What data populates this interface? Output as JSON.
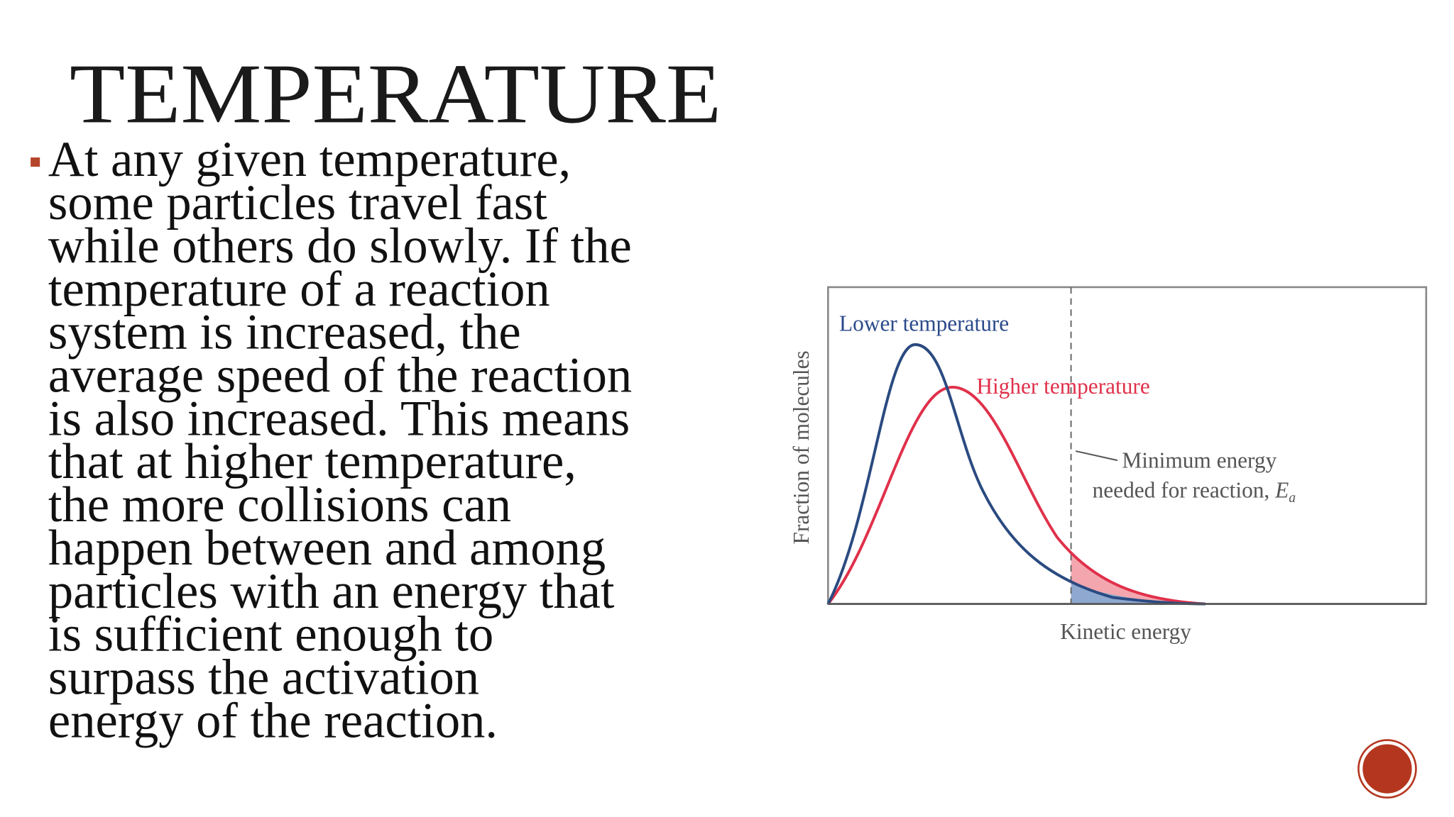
{
  "slide": {
    "title": "TEMPERATURE",
    "bullet_lines": [
      "At any given temperature,",
      "some particles travel fast",
      "while others do slowly. If the",
      "temperature of a reaction",
      "system is increased, the",
      "average speed of the reaction",
      "is also increased. This means",
      "that at higher temperature,",
      "the more collisions can",
      "happen between and among",
      "particles with an energy that",
      "is sufficient enough to",
      "surpass the activation",
      "energy of the reaction."
    ]
  },
  "figure": {
    "lower_label": "Lower temperature",
    "higher_label": "Higher temperature",
    "threshold_line1": "Minimum energy",
    "threshold_line2": "needed for reaction, ",
    "threshold_symbol": "E",
    "threshold_subscript": "a",
    "y_label": "Fraction of molecules",
    "x_label": "Kinetic energy"
  }
}
